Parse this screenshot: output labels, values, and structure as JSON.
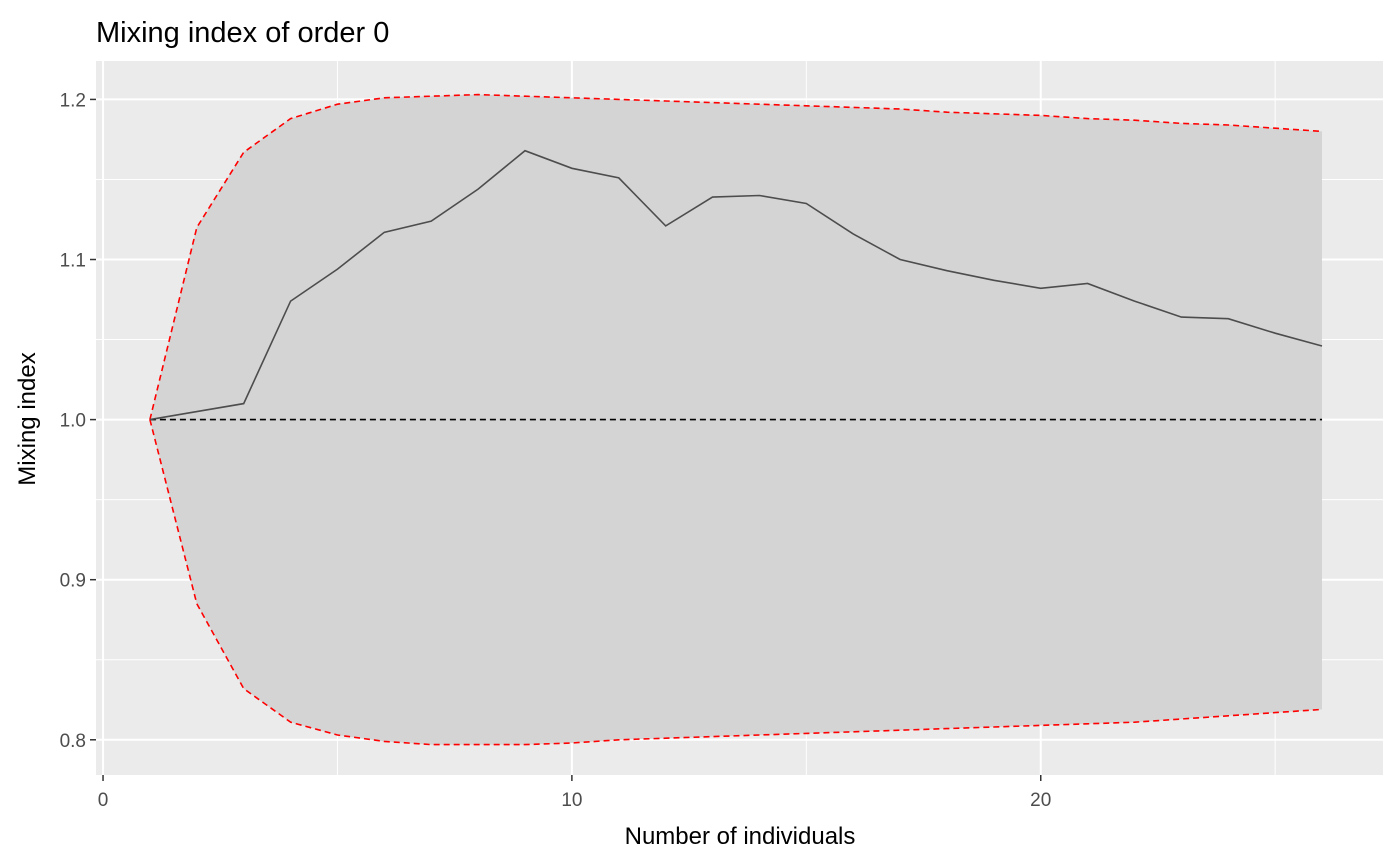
{
  "chart_data": {
    "type": "line",
    "title": "Mixing index of order 0",
    "xlabel": "Number of individuals",
    "ylabel": "Mixing index",
    "xlim": [
      -0.15,
      27.3
    ],
    "ylim": [
      0.778,
      1.224
    ],
    "x_ticks": [
      0,
      10,
      20
    ],
    "x_tick_labels": [
      "0",
      "10",
      "20"
    ],
    "y_ticks": [
      0.8,
      0.9,
      1.0,
      1.1,
      1.2
    ],
    "y_tick_labels": [
      "0.8",
      "0.9",
      "1.0",
      "1.1",
      "1.2"
    ],
    "grid": true,
    "legend": "none",
    "x": [
      1,
      2,
      3,
      4,
      5,
      6,
      7,
      8,
      9,
      10,
      11,
      12,
      13,
      14,
      15,
      16,
      17,
      18,
      19,
      20,
      21,
      22,
      23,
      24,
      25,
      26
    ],
    "series": [
      {
        "values": [
          1.0,
          1.005,
          1.01,
          1.074,
          1.094,
          1.117,
          1.124,
          1.144,
          1.168,
          1.157,
          1.151,
          1.121,
          1.139,
          1.14,
          1.135,
          1.116,
          1.1,
          1.093,
          1.087,
          1.082,
          1.085,
          1.074,
          1.064,
          1.063,
          1.054,
          1.046
        ]
      }
    ],
    "envelope": {
      "upper": [
        1.0,
        1.12,
        1.167,
        1.188,
        1.197,
        1.201,
        1.202,
        1.203,
        1.202,
        1.201,
        1.2,
        1.199,
        1.198,
        1.197,
        1.196,
        1.195,
        1.194,
        1.192,
        1.191,
        1.19,
        1.188,
        1.187,
        1.185,
        1.184,
        1.182,
        1.18
      ],
      "lower": [
        1.0,
        0.885,
        0.832,
        0.811,
        0.803,
        0.799,
        0.797,
        0.797,
        0.797,
        0.798,
        0.8,
        0.801,
        0.802,
        0.803,
        0.804,
        0.805,
        0.806,
        0.807,
        0.808,
        0.809,
        0.81,
        0.811,
        0.813,
        0.815,
        0.817,
        0.819
      ]
    },
    "reference_line": 1.0,
    "colors": {
      "panel": "#ebebeb",
      "grid": "#ffffff",
      "ribbon": "#d4d4d4",
      "line": "#4d4d4d",
      "envelope": "#ff0000",
      "reference": "#000000"
    }
  }
}
